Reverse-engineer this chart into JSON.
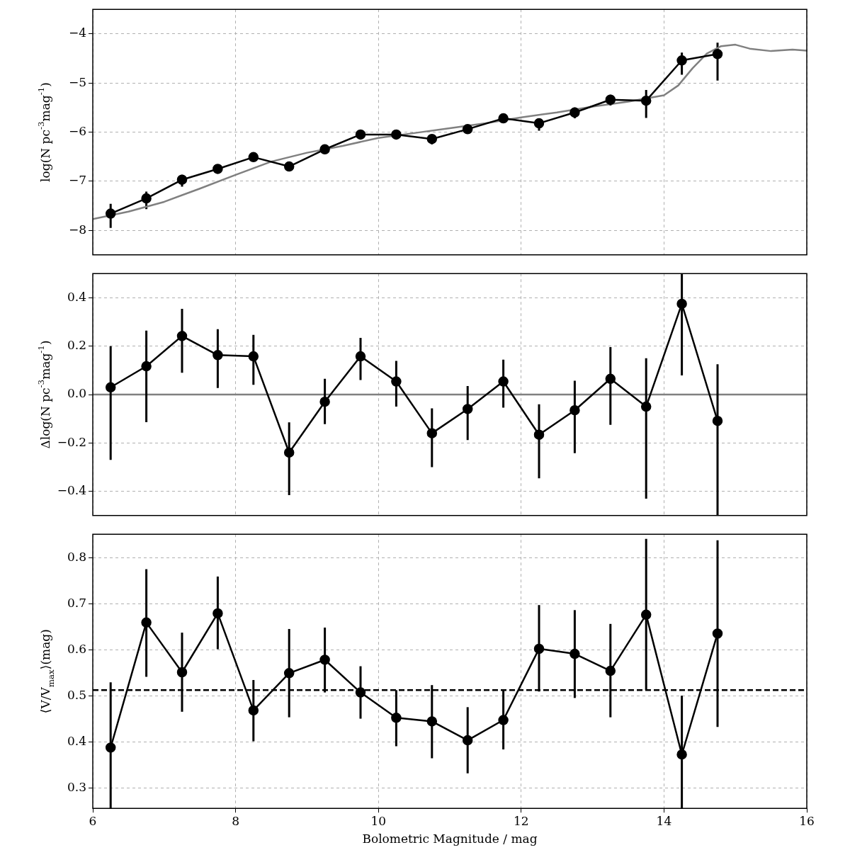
{
  "chart_data": [
    {
      "type": "line",
      "ylabel": "log(N pc$^{-3}$mag$^{-1}$)",
      "xlim": [
        6,
        16
      ],
      "xticks": [
        6,
        8,
        10,
        12,
        14,
        16
      ],
      "ylim": [
        -8.5,
        -3.5
      ],
      "yticks": [
        -8,
        -7,
        -6,
        -5,
        -4
      ],
      "grid": true,
      "tick_labels": "y",
      "x": [
        6.25,
        6.75,
        7.25,
        7.75,
        8.25,
        8.75,
        9.25,
        9.75,
        10.25,
        10.75,
        11.25,
        11.75,
        12.25,
        12.75,
        13.25,
        13.75,
        14.25,
        14.75
      ],
      "series": [
        {
          "color": "#000000",
          "marker": "circle",
          "line_style": "solid",
          "values": [
            -7.66,
            -7.35,
            -6.97,
            -6.75,
            -6.51,
            -6.7,
            -6.35,
            -6.05,
            -6.05,
            -6.14,
            -5.94,
            -5.72,
            -5.82,
            -5.6,
            -5.34,
            -5.36,
            -4.54,
            -4.41
          ],
          "errors": [
            [
              -7.95,
              -7.46
            ],
            [
              -7.57,
              -7.21
            ],
            [
              -7.11,
              -6.87
            ],
            null,
            [
              -6.56,
              -6.46
            ],
            [
              -6.8,
              -6.6
            ],
            [
              -6.42,
              -6.28
            ],
            null,
            [
              -6.1,
              -6.0
            ],
            [
              -6.25,
              -6.05
            ],
            [
              -6.03,
              -5.87
            ],
            [
              -5.77,
              -5.67
            ],
            [
              -5.97,
              -5.72
            ],
            [
              -5.72,
              -5.5
            ],
            [
              -5.46,
              -5.24
            ],
            [
              -5.71,
              -5.14
            ],
            [
              -4.83,
              -4.38
            ],
            [
              -4.95,
              -4.18
            ]
          ]
        },
        {
          "color": "#808080",
          "marker": "none",
          "line_style": "solid",
          "x": [
            6,
            6.5,
            7,
            7.5,
            8,
            8.5,
            9,
            9.5,
            10,
            10.5,
            11,
            11.5,
            12,
            12.5,
            13,
            13.5,
            14,
            14.2,
            14.4,
            14.6,
            14.8,
            15,
            15.2,
            15.5,
            15.8,
            16
          ],
          "values": [
            -7.77,
            -7.62,
            -7.42,
            -7.15,
            -6.87,
            -6.6,
            -6.42,
            -6.28,
            -6.12,
            -6.02,
            -5.92,
            -5.82,
            -5.7,
            -5.6,
            -5.48,
            -5.38,
            -5.25,
            -5.05,
            -4.7,
            -4.4,
            -4.25,
            -4.22,
            -4.3,
            -4.35,
            -4.32,
            -4.34
          ]
        }
      ]
    },
    {
      "type": "line",
      "ylabel": "Δlog(N pc$^{-3}$mag$^{-1}$)",
      "xlim": [
        6,
        16
      ],
      "xticks": [
        6,
        8,
        10,
        12,
        14,
        16
      ],
      "ylim": [
        -0.5,
        0.5
      ],
      "yticks": [
        {
          "value": -0.4,
          "label": "−0.4"
        },
        {
          "value": -0.2,
          "label": "−0.2"
        },
        {
          "value": 0,
          "label": "0.0"
        },
        {
          "value": 0.2,
          "label": "0.2"
        },
        {
          "value": 0.4,
          "label": "0.4"
        }
      ],
      "grid": true,
      "tick_labels": "y",
      "x": [
        6.25,
        6.75,
        7.25,
        7.75,
        8.25,
        8.75,
        9.25,
        9.75,
        10.25,
        10.75,
        11.25,
        11.75,
        12.25,
        12.75,
        13.25,
        13.75,
        14.25,
        14.75
      ],
      "ref_lines": [
        {
          "axis": "y",
          "value": 0,
          "color": "#808080",
          "line_style": "solid"
        }
      ],
      "series": [
        {
          "color": "#000000",
          "marker": "circle",
          "line_style": "solid",
          "values": [
            0.03,
            0.117,
            0.242,
            0.163,
            0.158,
            -0.24,
            -0.03,
            0.158,
            0.054,
            -0.16,
            -0.06,
            0.054,
            -0.166,
            -0.065,
            0.065,
            -0.05,
            0.375,
            -0.109
          ],
          "errors": [
            [
              -0.27,
              0.2
            ],
            [
              -0.114,
              0.264
            ],
            [
              0.09,
              0.354
            ],
            [
              0.027,
              0.27
            ],
            [
              0.04,
              0.247
            ],
            [
              -0.416,
              -0.115
            ],
            [
              -0.122,
              0.065
            ],
            [
              0.06,
              0.234
            ],
            [
              -0.05,
              0.139
            ],
            [
              -0.3,
              -0.057
            ],
            [
              -0.188,
              0.035
            ],
            [
              -0.054,
              0.144
            ],
            [
              -0.346,
              -0.04
            ],
            [
              -0.242,
              0.057
            ],
            [
              -0.125,
              0.196
            ],
            [
              -0.43,
              0.15
            ],
            [
              0.079,
              0.5
            ],
            [
              -0.5,
              0.125
            ]
          ]
        }
      ]
    },
    {
      "type": "line",
      "xlabel": "Bolometric Magnitude / mag",
      "ylabel": "⟨V/V$_{max}$⟩(mag)",
      "xlim": [
        6,
        16
      ],
      "xticks": [
        6,
        8,
        10,
        12,
        14,
        16
      ],
      "ylim": [
        0.256,
        0.852
      ],
      "yticks": [
        0.3,
        0.4,
        0.5,
        0.6,
        0.7,
        0.8
      ],
      "grid": true,
      "x": [
        6.25,
        6.75,
        7.25,
        7.75,
        8.25,
        8.75,
        9.25,
        9.75,
        10.25,
        10.75,
        11.25,
        11.75,
        12.25,
        12.75,
        13.25,
        13.75,
        14.25,
        14.75
      ],
      "ref_lines": [
        {
          "axis": "y",
          "value": 0.513,
          "color": "#000000",
          "line_style": "dashed"
        }
      ],
      "series": [
        {
          "color": "#000000",
          "marker": "circle",
          "line_style": "solid",
          "values": [
            0.388,
            0.66,
            0.552,
            0.68,
            0.469,
            0.55,
            0.579,
            0.508,
            0.453,
            0.445,
            0.404,
            0.448,
            0.603,
            0.592,
            0.555,
            0.677,
            0.373,
            0.636
          ],
          "errors": [
            [
              0.256,
              0.53
            ],
            [
              0.542,
              0.776
            ],
            [
              0.466,
              0.638
            ],
            [
              0.602,
              0.76
            ],
            [
              0.402,
              0.535
            ],
            [
              0.454,
              0.646
            ],
            [
              0.508,
              0.649
            ],
            [
              0.451,
              0.565
            ],
            [
              0.391,
              0.513
            ],
            [
              0.365,
              0.524
            ],
            [
              0.332,
              0.476
            ],
            [
              0.384,
              0.513
            ],
            [
              0.51,
              0.698
            ],
            [
              0.496,
              0.687
            ],
            [
              0.454,
              0.657
            ],
            [
              0.513,
              0.842
            ],
            [
              0.256,
              0.501
            ],
            [
              0.433,
              0.839
            ]
          ]
        }
      ]
    }
  ]
}
